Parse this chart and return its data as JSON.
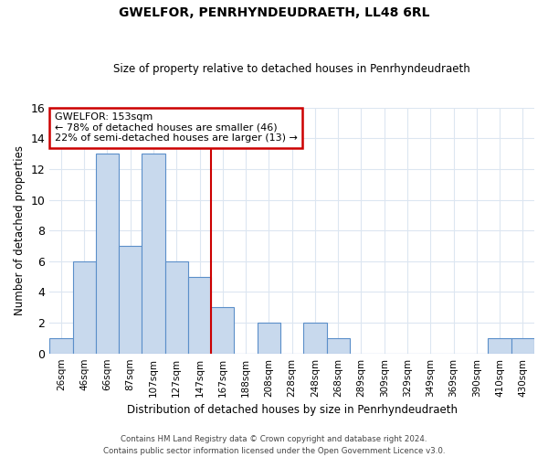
{
  "title": "GWELFOR, PENRHYNDEUDRAETH, LL48 6RL",
  "subtitle": "Size of property relative to detached houses in Penrhyndeudraeth",
  "xlabel": "Distribution of detached houses by size in Penrhyndeudraeth",
  "ylabel": "Number of detached properties",
  "bar_labels": [
    "26sqm",
    "46sqm",
    "66sqm",
    "87sqm",
    "107sqm",
    "127sqm",
    "147sqm",
    "167sqm",
    "188sqm",
    "208sqm",
    "228sqm",
    "248sqm",
    "268sqm",
    "289sqm",
    "309sqm",
    "329sqm",
    "349sqm",
    "369sqm",
    "390sqm",
    "410sqm",
    "430sqm"
  ],
  "bar_values": [
    1,
    6,
    13,
    7,
    13,
    6,
    5,
    3,
    0,
    2,
    0,
    2,
    1,
    0,
    0,
    0,
    0,
    0,
    0,
    1,
    1
  ],
  "bar_color": "#c8d9ed",
  "bar_edge_color": "#5b8fc9",
  "ylim": [
    0,
    16
  ],
  "yticks": [
    0,
    2,
    4,
    6,
    8,
    10,
    12,
    14,
    16
  ],
  "annotation_title": "GWELFOR: 153sqm",
  "annotation_line1": "← 78% of detached houses are smaller (46)",
  "annotation_line2": "22% of semi-detached houses are larger (13) →",
  "annotation_box_color": "#ffffff",
  "annotation_box_edge": "#cc0000",
  "marker_line_color": "#cc0000",
  "grid_color": "#dce6f1",
  "background_color": "#ffffff",
  "footer_line1": "Contains HM Land Registry data © Crown copyright and database right 2024.",
  "footer_line2": "Contains public sector information licensed under the Open Government Licence v3.0."
}
